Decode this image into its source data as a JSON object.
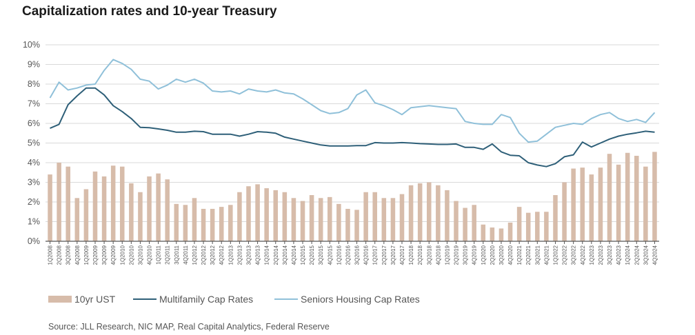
{
  "title": "Capitalization rates and 10-year Treasury",
  "source": "Source: JLL Research, NIC MAP, Real Capital Analytics, Federal Reserve",
  "colors": {
    "bar": "#d7bcaa",
    "multifamily": "#2e5f78",
    "seniors": "#8fc0d9",
    "grid": "#d9d9d9",
    "axis": "#555555"
  },
  "chart_data": {
    "type": "bar+line",
    "title": "Capitalization rates and 10-year Treasury",
    "ylim": [
      0,
      10
    ],
    "yticks": [
      "0%",
      "1%",
      "2%",
      "3%",
      "4%",
      "5%",
      "6%",
      "7%",
      "8%",
      "9%",
      "10%"
    ],
    "categories": [
      "1Q2008",
      "2Q2008",
      "3Q2008",
      "4Q2008",
      "1Q2009",
      "2Q2009",
      "3Q2009",
      "4Q2009",
      "1Q2010",
      "2Q2010",
      "3Q2010",
      "4Q2010",
      "1Q2011",
      "2Q2011",
      "3Q2011",
      "4Q2011",
      "1Q2012",
      "2Q2012",
      "3Q2012",
      "4Q2012",
      "1Q2013",
      "2Q2013",
      "3Q2013",
      "4Q2013",
      "1Q2014",
      "2Q2014",
      "3Q2014",
      "4Q2014",
      "1Q2015",
      "2Q2015",
      "3Q2015",
      "4Q2015",
      "1Q2016",
      "2Q2016",
      "3Q2016",
      "4Q2016",
      "1Q2017",
      "2Q2017",
      "3Q2017",
      "4Q2017",
      "1Q2018",
      "2Q2018",
      "3Q2018",
      "4Q2018",
      "1Q2019",
      "2Q2019",
      "3Q2019",
      "4Q2019",
      "1Q2020",
      "2Q2020",
      "3Q2020",
      "4Q2020",
      "1Q2021",
      "2Q2021",
      "3Q2021",
      "4Q2021",
      "1Q2022",
      "2Q2022",
      "3Q2022",
      "4Q2022",
      "1Q2023",
      "2Q2023",
      "3Q2023",
      "4Q2023",
      "1Q2024",
      "2Q2024",
      "3Q2024",
      "4Q2024"
    ],
    "series": [
      {
        "name": "10yr UST",
        "kind": "bar",
        "values": [
          3.4,
          4.0,
          3.8,
          2.2,
          2.65,
          3.55,
          3.3,
          3.85,
          3.8,
          2.95,
          2.5,
          3.3,
          3.45,
          3.15,
          1.9,
          1.85,
          2.2,
          1.65,
          1.65,
          1.75,
          1.85,
          2.5,
          2.8,
          2.9,
          2.7,
          2.6,
          2.5,
          2.2,
          2.05,
          2.35,
          2.2,
          2.25,
          1.9,
          1.65,
          1.6,
          2.5,
          2.5,
          2.2,
          2.2,
          2.4,
          2.85,
          2.95,
          3.0,
          2.85,
          2.6,
          2.05,
          1.7,
          1.85,
          0.85,
          0.7,
          0.65,
          0.95,
          1.75,
          1.45,
          1.5,
          1.5,
          2.35,
          3.0,
          3.7,
          3.75,
          3.4,
          3.75,
          4.45,
          3.9,
          4.5,
          4.35,
          3.8,
          4.55
        ]
      },
      {
        "name": "Multifamily Cap Rates",
        "kind": "line",
        "values": [
          5.75,
          5.95,
          6.95,
          7.4,
          7.8,
          7.8,
          7.45,
          6.9,
          6.6,
          6.25,
          5.8,
          5.78,
          5.72,
          5.65,
          5.55,
          5.55,
          5.6,
          5.58,
          5.45,
          5.45,
          5.45,
          5.35,
          5.45,
          5.58,
          5.55,
          5.5,
          5.3,
          5.2,
          5.1,
          5.0,
          4.9,
          4.85,
          4.85,
          4.85,
          4.87,
          4.87,
          5.02,
          5.0,
          5.0,
          5.02,
          5.0,
          4.97,
          4.95,
          4.93,
          4.93,
          4.95,
          4.78,
          4.78,
          4.68,
          4.95,
          4.55,
          4.38,
          4.35,
          4.0,
          3.88,
          3.8,
          3.95,
          4.3,
          4.4,
          5.05,
          4.8,
          5.0,
          5.2,
          5.35,
          5.45,
          5.52,
          5.6,
          5.55
        ]
      },
      {
        "name": "Seniors Housing Cap Rates",
        "kind": "line",
        "values": [
          7.3,
          8.1,
          7.7,
          7.8,
          7.95,
          8.0,
          8.7,
          9.25,
          9.05,
          8.75,
          8.25,
          8.15,
          7.75,
          7.95,
          8.25,
          8.1,
          8.25,
          8.05,
          7.65,
          7.6,
          7.65,
          7.5,
          7.75,
          7.65,
          7.6,
          7.7,
          7.55,
          7.5,
          7.25,
          6.95,
          6.65,
          6.5,
          6.55,
          6.75,
          7.45,
          7.7,
          7.05,
          6.9,
          6.7,
          6.45,
          6.8,
          6.85,
          6.9,
          6.85,
          6.8,
          6.75,
          6.1,
          6.0,
          5.95,
          5.95,
          6.45,
          6.3,
          5.5,
          5.05,
          5.1,
          5.45,
          5.8,
          5.9,
          6.0,
          5.95,
          6.25,
          6.45,
          6.55,
          6.25,
          6.1,
          6.2,
          6.05,
          6.55
        ]
      }
    ],
    "legend": [
      {
        "label": "10yr UST",
        "kind": "bar"
      },
      {
        "label": "Multifamily Cap Rates",
        "kind": "line"
      },
      {
        "label": "Seniors Housing Cap Rates",
        "kind": "line"
      }
    ],
    "legend_position": "bottom-left"
  }
}
